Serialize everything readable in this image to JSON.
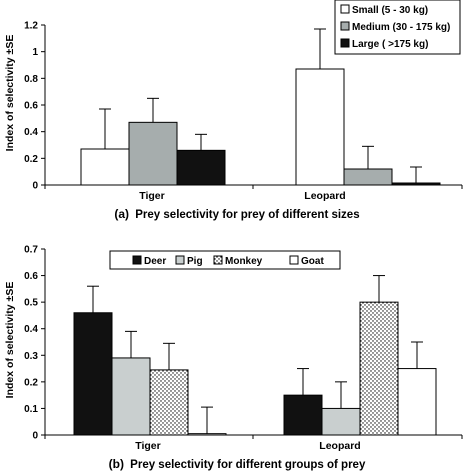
{
  "chart_data": [
    {
      "type": "bar",
      "panel_letter": "(a)",
      "caption": "Prey selectivity for prey of different sizes",
      "ylabel": "Index of selectivity ±SE",
      "ylim": [
        0,
        1.2
      ],
      "yticks": [
        "0",
        "0.2",
        "0.4",
        "0.6",
        "0.8",
        "1",
        "1.2"
      ],
      "categories": [
        "Tiger",
        "Leopard"
      ],
      "legend_position": "top-right",
      "series": [
        {
          "name": "Small (5 - 30 kg)",
          "fill": "white",
          "values": [
            0.27,
            0.87
          ],
          "errors": [
            0.3,
            0.3
          ]
        },
        {
          "name": "Medium (30 - 175 kg)",
          "fill": "gray",
          "values": [
            0.47,
            0.12
          ],
          "errors": [
            0.18,
            0.17
          ]
        },
        {
          "name": "Large ( >175 kg)",
          "fill": "black",
          "values": [
            0.26,
            0.015
          ],
          "errors": [
            0.12,
            0.12
          ]
        }
      ]
    },
    {
      "type": "bar",
      "panel_letter": "(b)",
      "caption": "Prey selectivity for different groups of prey",
      "ylabel": "Index of selectivity ±SE",
      "ylim": [
        0,
        0.7
      ],
      "yticks": [
        "0",
        "0.1",
        "0.2",
        "0.3",
        "0.4",
        "0.5",
        "0.6",
        "0.7"
      ],
      "categories": [
        "Tiger",
        "Leopard"
      ],
      "legend_position": "top",
      "series": [
        {
          "name": "Deer",
          "fill": "black",
          "values": [
            0.46,
            0.15
          ],
          "errors": [
            0.1,
            0.1
          ]
        },
        {
          "name": "Pig",
          "fill": "lightgray",
          "values": [
            0.29,
            0.1
          ],
          "errors": [
            0.1,
            0.1
          ]
        },
        {
          "name": "Monkey",
          "fill": "dots",
          "values": [
            0.245,
            0.5
          ],
          "errors": [
            0.1,
            0.1
          ]
        },
        {
          "name": "Goat",
          "fill": "white",
          "values": [
            0.005,
            0.25
          ],
          "errors": [
            0.1,
            0.1
          ]
        }
      ]
    }
  ]
}
